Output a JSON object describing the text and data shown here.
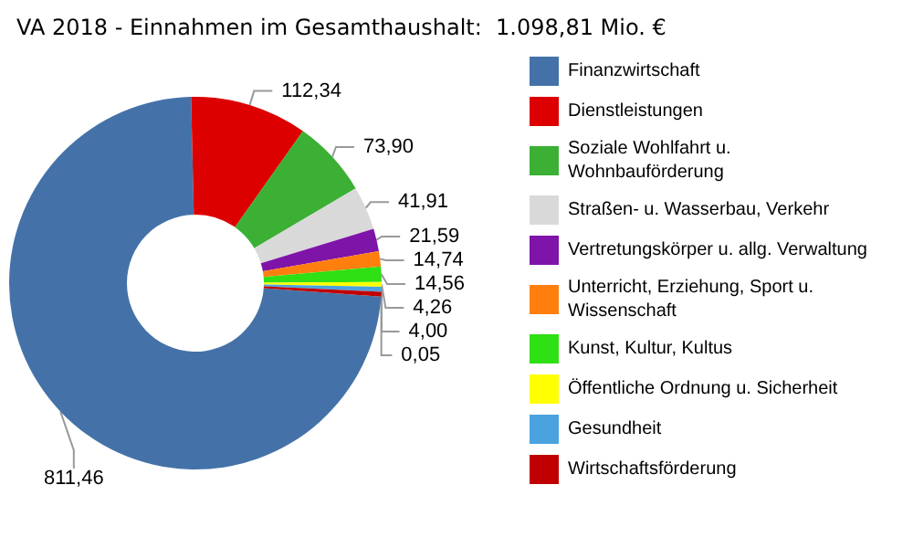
{
  "chart_data": {
    "type": "donut",
    "title": "VA 2018 - Einnahmen im Gesamthaushalt:  1.098,81 Mio. €",
    "categories": [
      "Finanzwirtschaft",
      "Dienstleistungen",
      "Soziale Wohlfahrt u. Wohnbauförderung",
      "Straßen- u. Wasserbau, Verkehr",
      "Vertretungskörper u. allg. Verwaltung",
      "Unterricht, Erziehung, Sport u. Wissenschaft",
      "Kunst, Kultur, Kultus",
      "Öffentliche Ordnung u. Sicherheit",
      "Gesundheit",
      "Wirtschaftsförderung"
    ],
    "values": [
      811.46,
      112.34,
      73.9,
      41.91,
      21.59,
      14.74,
      14.56,
      4.26,
      4.0,
      0.05
    ],
    "value_labels": [
      "811,46",
      "112,34",
      "73,90",
      "41,91",
      "21,59",
      "14,74",
      "14,56",
      "4,26",
      "4,00",
      "0,05"
    ],
    "colors": [
      "#4472a8",
      "#dd0000",
      "#3bb034",
      "#d9d9d9",
      "#7f14a8",
      "#ff7f0e",
      "#2fe014",
      "#ffff00",
      "#4aa3df",
      "#c00000"
    ],
    "legend": "right"
  }
}
